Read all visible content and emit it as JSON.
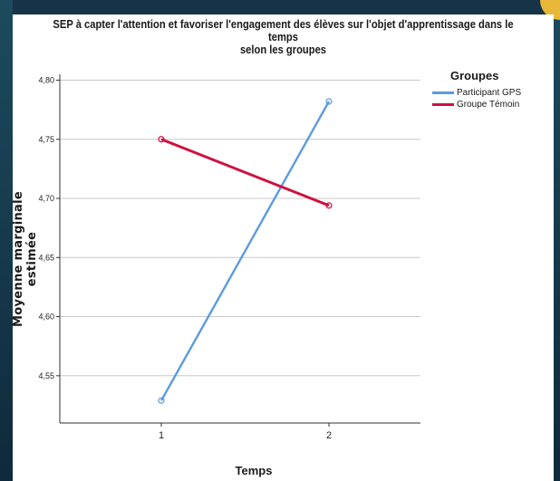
{
  "chart_data": {
    "type": "line",
    "title": "SEP à capter l'attention et favoriser l'engagement des élèves sur l'objet d'apprentissage dans le temps selon les groupes",
    "title_line1": "SEP à capter l'attention et favoriser l'engagement des élèves sur l'objet d'apprentissage dans le temps",
    "title_line2": "selon les groupes",
    "xlabel": "Temps",
    "ylabel": "Moyenne marginale estimée",
    "x": [
      1,
      2
    ],
    "x_tick_labels": [
      "1",
      "2"
    ],
    "ylim": [
      4.51,
      4.805
    ],
    "y_ticks": [
      4.55,
      4.6,
      4.65,
      4.7,
      4.75,
      4.8
    ],
    "y_tick_labels": [
      "4,55",
      "4,60",
      "4,65",
      "4,70",
      "4,75",
      "4,80"
    ],
    "grid": true,
    "legend_title": "Groupes",
    "legend_position": "top-right",
    "series": [
      {
        "name": "Participant GPS",
        "values": [
          4.529,
          4.782
        ],
        "color": "#5b9be0"
      },
      {
        "name": "Groupe Témoin",
        "values": [
          4.75,
          4.694
        ],
        "color": "#d0103e"
      }
    ]
  }
}
